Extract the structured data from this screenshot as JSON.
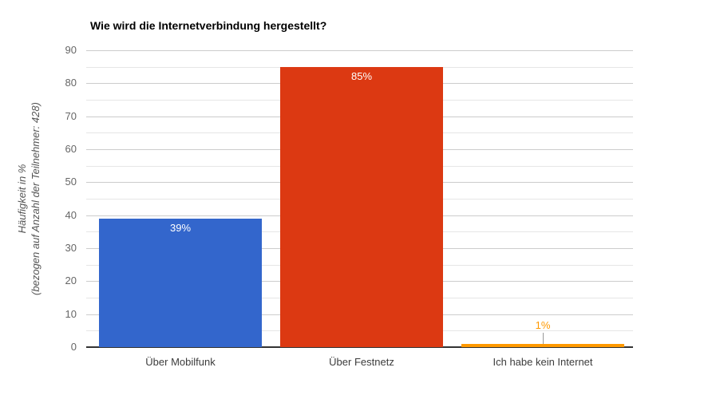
{
  "chart_data": {
    "type": "bar",
    "title": "Wie wird die Internetverbindung hergestellt?",
    "categories": [
      "Über Mobilfunk",
      "Über Festnetz",
      "Ich habe kein Internet"
    ],
    "values": [
      39,
      85,
      1
    ],
    "value_labels": [
      "39%",
      "85%",
      "1%"
    ],
    "series_colors": [
      "#3366CC",
      "#DC3912",
      "#FF9900"
    ],
    "xlabel": "",
    "ylabel": "Häufigkeit in % (bezogen auf Anzahl der Teilnehmer: 428)",
    "ylabel_lines": [
      "Häufigkeit in %",
      "(bezogen auf Anzahl der Teilnehmer: 428)"
    ],
    "participants": 428,
    "ylim": [
      0,
      90
    ],
    "yticks": [
      0,
      10,
      20,
      30,
      40,
      50,
      60,
      70,
      80,
      90
    ],
    "minor_tick_step": 5,
    "grid": true,
    "legend": "none",
    "value_label_placement": "inside-top, outside with stem when bar too short"
  },
  "colors": {
    "background": "#FFFFFF",
    "title": "#000000",
    "major_gridline": "#CCCCCC",
    "minor_gridline": "#E6E6E6",
    "baseline": "#333333",
    "y_tick_label": "#666666",
    "x_category_label": "#3C3C3C",
    "y_axis_title": "#555555",
    "inside_value_label": "#FFFFFF",
    "annotation_stem": "#999999"
  }
}
